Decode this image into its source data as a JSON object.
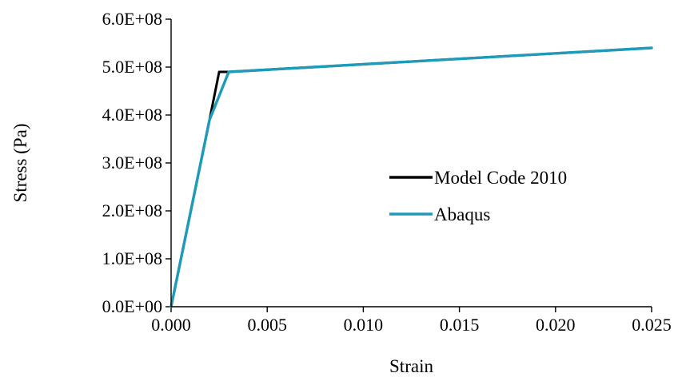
{
  "chart_data": {
    "type": "line",
    "title": "",
    "xlabel": "Strain",
    "ylabel": "Stress (Pa)",
    "xlim": [
      0,
      0.025
    ],
    "ylim": [
      0,
      600000000
    ],
    "x_ticks": [
      0,
      0.005,
      0.01,
      0.015,
      0.02,
      0.025
    ],
    "x_tick_labels": [
      "0.000",
      "0.005",
      "0.010",
      "0.015",
      "0.020",
      "0.025"
    ],
    "y_ticks": [
      0,
      100000000,
      200000000,
      300000000,
      400000000,
      500000000,
      600000000
    ],
    "y_tick_labels": [
      "0.0E+00",
      "1.0E+08",
      "2.0E+08",
      "3.0E+08",
      "4.0E+08",
      "5.0E+08",
      "6.0E+08"
    ],
    "grid": false,
    "legend_position": "center-right",
    "series": [
      {
        "name": "Model Code 2010",
        "color": "#000000",
        "points": [
          [
            0,
            0
          ],
          [
            0.002,
            390000000
          ],
          [
            0.0025,
            490000000
          ],
          [
            0.003,
            490000000
          ],
          [
            0.025,
            540000000
          ]
        ]
      },
      {
        "name": "Abaqus",
        "color": "#1e9bb8",
        "points": [
          [
            0,
            0
          ],
          [
            0.002,
            390000000
          ],
          [
            0.003,
            490000000
          ],
          [
            0.025,
            540000000
          ]
        ]
      }
    ]
  }
}
